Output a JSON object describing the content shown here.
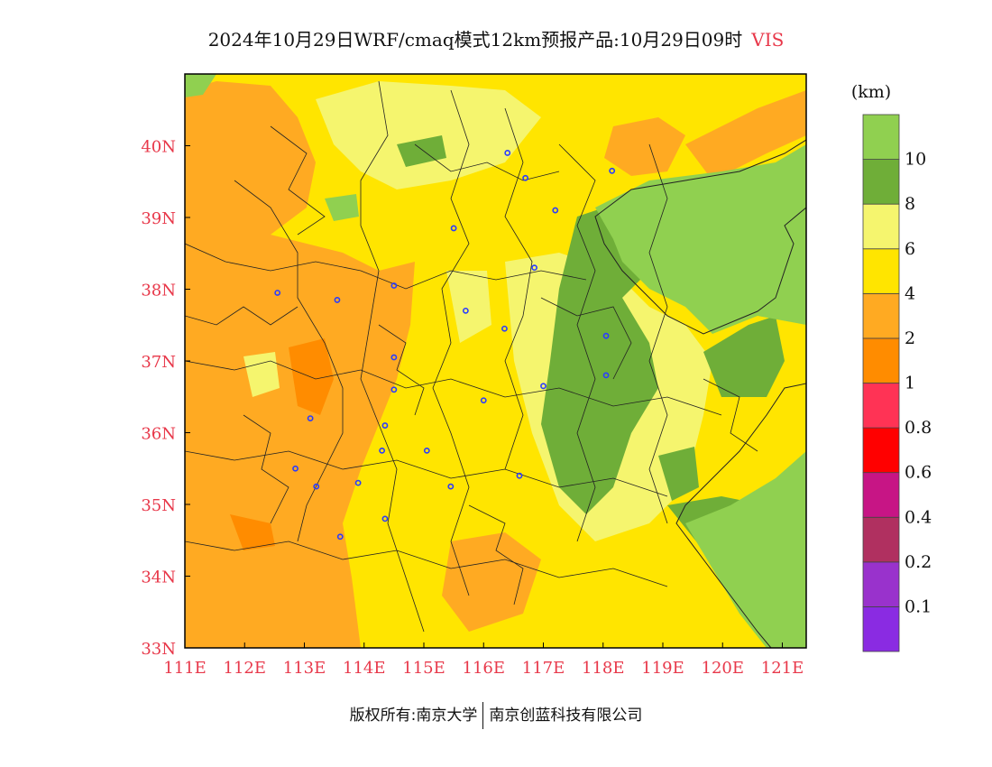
{
  "title": {
    "main": "2024年10月29日WRF/cmaq模式12km预报产品:10月29日09时",
    "variable": "VIS"
  },
  "map": {
    "lon_range": [
      111,
      121.4
    ],
    "lat_range": [
      33,
      41
    ],
    "x_ticks": [
      "111E",
      "112E",
      "113E",
      "114E",
      "115E",
      "116E",
      "117E",
      "118E",
      "119E",
      "120E",
      "121E"
    ],
    "y_ticks": [
      "40N",
      "39N",
      "38N",
      "37N",
      "36N",
      "35N",
      "34N",
      "33N"
    ],
    "stations_lonlat": [
      [
        116.4,
        39.9
      ],
      [
        116.7,
        39.55
      ],
      [
        117.2,
        39.1
      ],
      [
        115.5,
        38.85
      ],
      [
        116.85,
        38.3
      ],
      [
        112.55,
        37.95
      ],
      [
        113.55,
        37.85
      ],
      [
        114.5,
        38.05
      ],
      [
        115.7,
        37.7
      ],
      [
        116.35,
        37.45
      ],
      [
        118.05,
        37.35
      ],
      [
        114.5,
        37.05
      ],
      [
        118.05,
        36.8
      ],
      [
        117.0,
        36.65
      ],
      [
        114.5,
        36.6
      ],
      [
        116.0,
        36.45
      ],
      [
        113.1,
        36.2
      ],
      [
        114.35,
        36.1
      ],
      [
        114.3,
        35.75
      ],
      [
        115.05,
        35.75
      ],
      [
        112.85,
        35.5
      ],
      [
        116.6,
        35.4
      ],
      [
        113.9,
        35.3
      ],
      [
        113.2,
        35.25
      ],
      [
        115.45,
        35.25
      ],
      [
        114.35,
        34.8
      ],
      [
        113.6,
        34.55
      ],
      [
        118.15,
        39.65
      ]
    ]
  },
  "legend": {
    "unit": "(km)",
    "colors": [
      "#8a2be2",
      "#9932cc",
      "#b03060",
      "#c71585",
      "#ff0000",
      "#ff3355",
      "#ff8c00",
      "#ffaa22",
      "#ffe500",
      "#f5f56e",
      "#6fae38",
      "#90d050"
    ],
    "labels": [
      "0.1",
      "0.2",
      "0.4",
      "0.6",
      "0.8",
      "1",
      "2",
      "4",
      "6",
      "8",
      "10"
    ]
  },
  "footer": {
    "left": "版权所有:南京大学",
    "right": "南京创蓝科技有限公司"
  }
}
